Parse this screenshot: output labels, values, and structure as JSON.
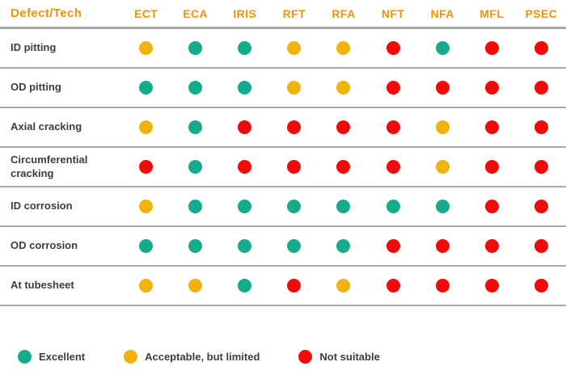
{
  "chart_data": {
    "type": "table",
    "corner_header": "Defect/Tech",
    "columns": [
      "ECT",
      "ECA",
      "IRIS",
      "RFT",
      "RFA",
      "NFT",
      "NFA",
      "MFL",
      "PSEC"
    ],
    "rows": [
      {
        "label": "ID pitting",
        "ratings": [
          "acceptable",
          "excellent",
          "excellent",
          "acceptable",
          "acceptable",
          "not-suitable",
          "excellent",
          "not-suitable",
          "not-suitable"
        ]
      },
      {
        "label": "OD pitting",
        "ratings": [
          "excellent",
          "excellent",
          "excellent",
          "acceptable",
          "acceptable",
          "not-suitable",
          "not-suitable",
          "not-suitable",
          "not-suitable"
        ]
      },
      {
        "label": "Axial cracking",
        "ratings": [
          "acceptable",
          "excellent",
          "not-suitable",
          "not-suitable",
          "not-suitable",
          "not-suitable",
          "acceptable",
          "not-suitable",
          "not-suitable"
        ]
      },
      {
        "label": "Circumferential cracking",
        "ratings": [
          "not-suitable",
          "excellent",
          "not-suitable",
          "not-suitable",
          "not-suitable",
          "not-suitable",
          "acceptable",
          "not-suitable",
          "not-suitable"
        ]
      },
      {
        "label": "ID corrosion",
        "ratings": [
          "acceptable",
          "excellent",
          "excellent",
          "excellent",
          "excellent",
          "excellent",
          "excellent",
          "not-suitable",
          "not-suitable"
        ]
      },
      {
        "label": "OD corrosion",
        "ratings": [
          "excellent",
          "excellent",
          "excellent",
          "excellent",
          "excellent",
          "not-suitable",
          "not-suitable",
          "not-suitable",
          "not-suitable"
        ]
      },
      {
        "label": "At tubesheet",
        "ratings": [
          "acceptable",
          "acceptable",
          "excellent",
          "not-suitable",
          "acceptable",
          "not-suitable",
          "not-suitable",
          "not-suitable",
          "not-suitable"
        ]
      }
    ],
    "legend": [
      {
        "key": "excellent",
        "label": "Excellent"
      },
      {
        "key": "acceptable",
        "label": "Acceptable, but limited"
      },
      {
        "key": "not-suitable",
        "label": "Not suitable"
      }
    ]
  },
  "colors": {
    "excellent": "#14ac8c",
    "acceptable": "#f0b30b",
    "not_suitable": "#f50808",
    "header_text": "#f3920a",
    "row_text": "#3d3d3b",
    "divider": "#a8a8a8"
  }
}
